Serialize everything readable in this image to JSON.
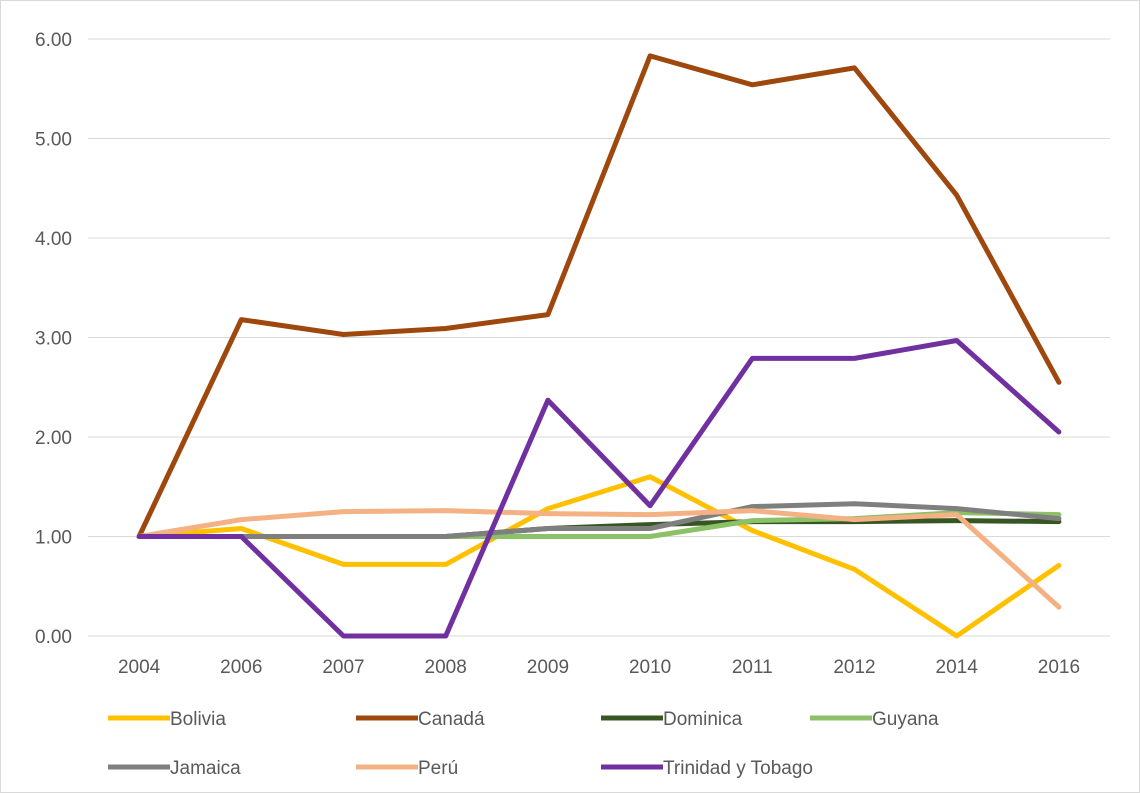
{
  "chart_data": {
    "type": "line",
    "title": "",
    "xlabel": "",
    "ylabel": "",
    "categories": [
      "2004",
      "2006",
      "2007",
      "2008",
      "2009",
      "2010",
      "2011",
      "2012",
      "2014",
      "2016"
    ],
    "ylim": [
      0,
      6
    ],
    "yticks": [
      "0.00",
      "1.00",
      "2.00",
      "3.00",
      "4.00",
      "5.00",
      "6.00"
    ],
    "grid": true,
    "legend_position": "bottom",
    "series": [
      {
        "name": "Bolivia",
        "color": "#FFC000",
        "values": [
          1.0,
          1.08,
          0.72,
          0.72,
          1.28,
          1.6,
          1.06,
          0.67,
          0.0,
          0.71
        ]
      },
      {
        "name": "Canadá",
        "color": "#9E480E",
        "values": [
          1.0,
          3.18,
          3.03,
          3.09,
          3.23,
          5.83,
          5.54,
          5.71,
          4.43,
          2.55
        ]
      },
      {
        "name": "Dominica",
        "color": "#375623",
        "values": [
          1.0,
          1.0,
          1.0,
          1.0,
          1.08,
          1.12,
          1.15,
          1.15,
          1.16,
          1.15
        ]
      },
      {
        "name": "Guyana",
        "color": "#8CC168",
        "values": [
          1.0,
          1.0,
          1.0,
          1.0,
          1.0,
          1.0,
          1.16,
          1.18,
          1.24,
          1.22
        ]
      },
      {
        "name": "Jamaica",
        "color": "#7F7F7F",
        "values": [
          1.0,
          1.0,
          1.0,
          1.0,
          1.08,
          1.08,
          1.3,
          1.33,
          1.28,
          1.18
        ]
      },
      {
        "name": "Perú",
        "color": "#F4B183",
        "values": [
          1.0,
          1.17,
          1.25,
          1.26,
          1.23,
          1.22,
          1.26,
          1.17,
          1.22,
          0.29
        ]
      },
      {
        "name": "Trinidad y Tobago",
        "color": "#7030A0",
        "values": [
          1.0,
          1.0,
          0.0,
          0.0,
          2.37,
          1.31,
          2.79,
          2.79,
          2.97,
          2.05
        ]
      }
    ]
  }
}
